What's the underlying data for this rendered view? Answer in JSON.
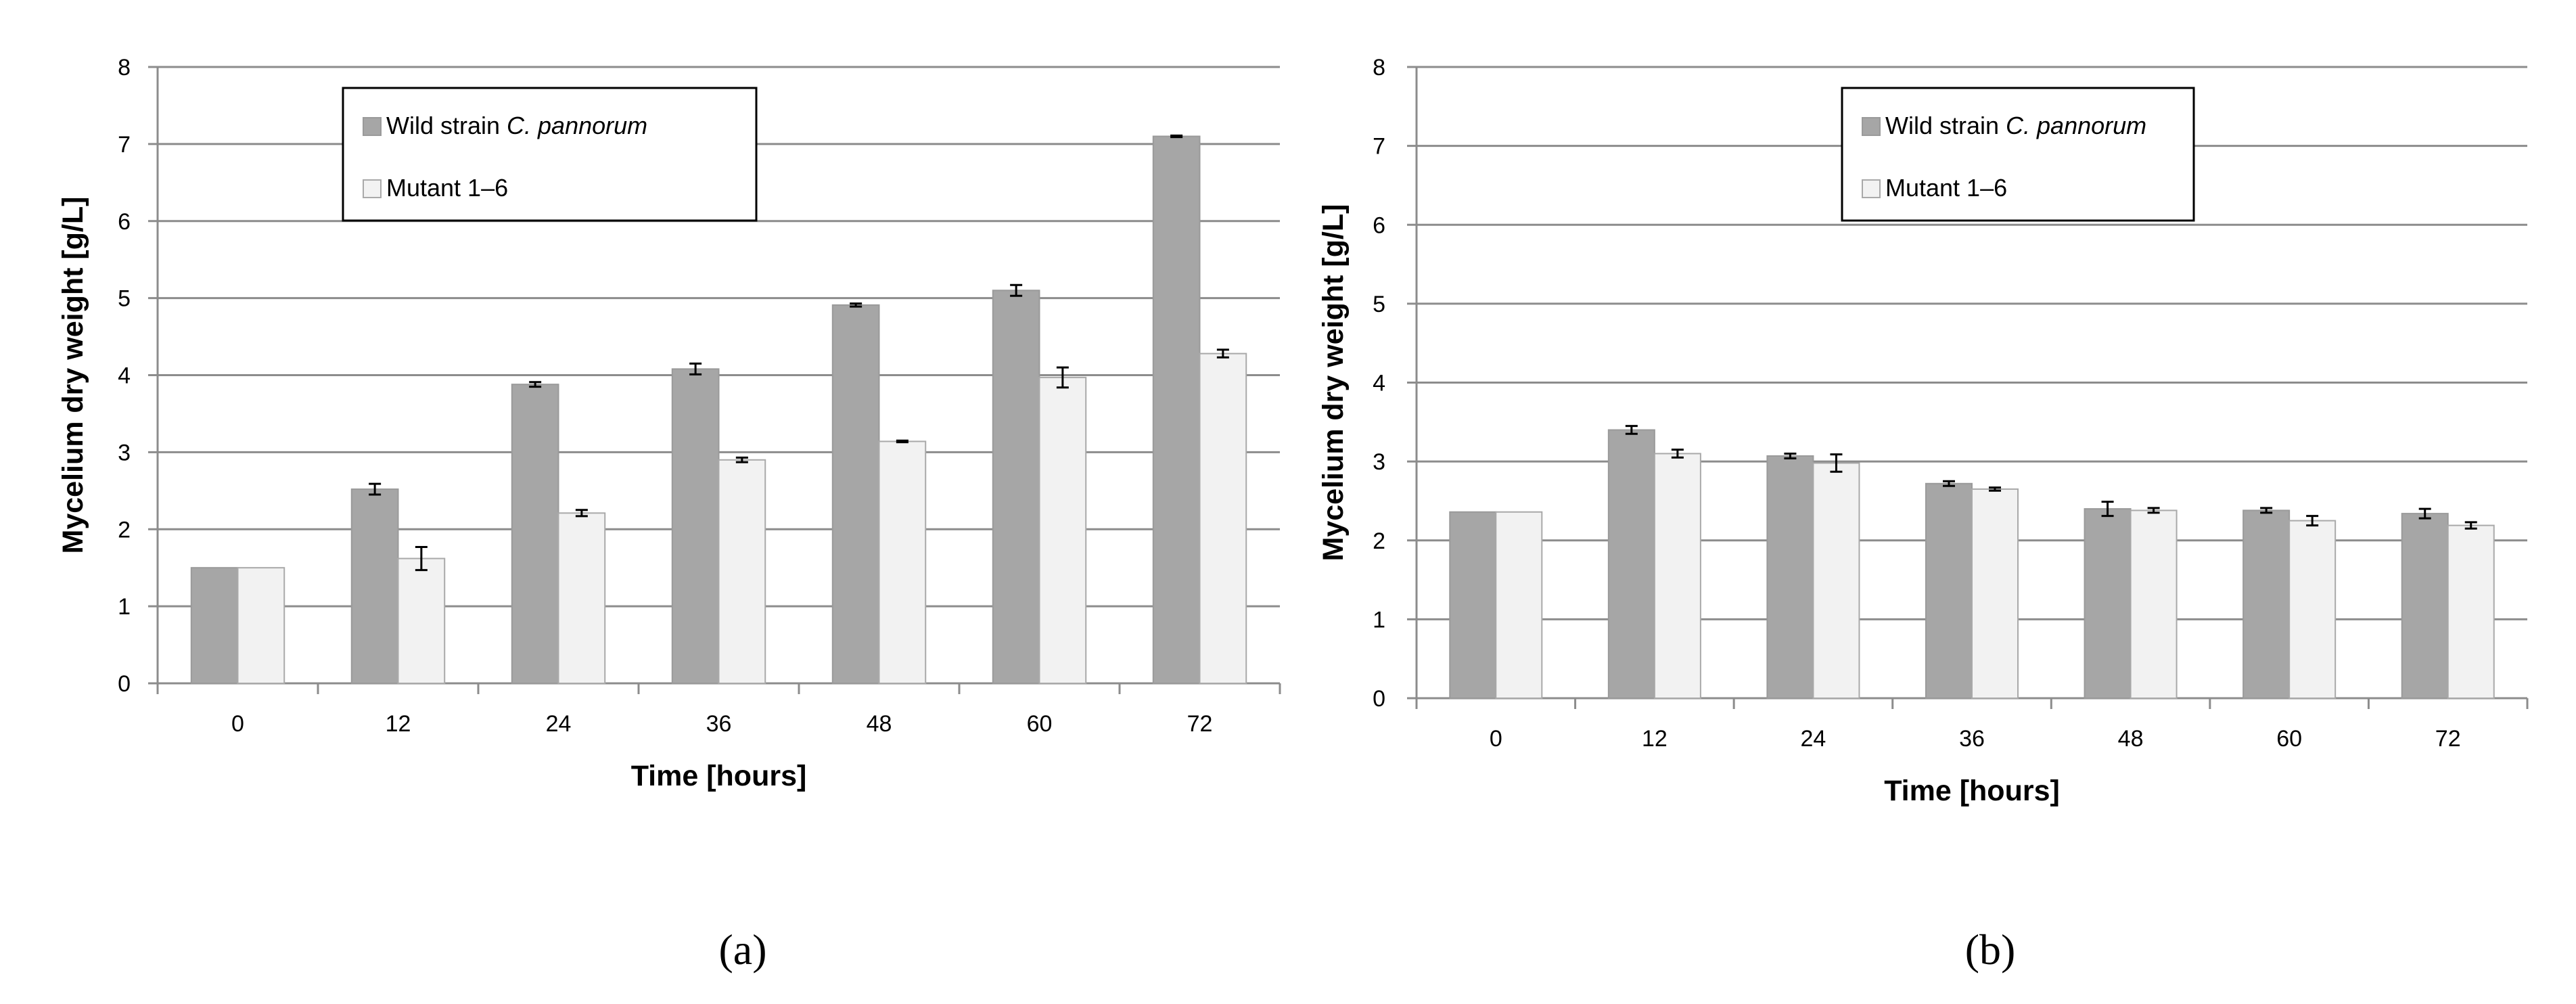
{
  "chart_data": [
    {
      "type": "bar",
      "panel_label": "(a)",
      "categories": [
        "0",
        "12",
        "24",
        "36",
        "48",
        "60",
        "72"
      ],
      "xlabel": "Time [hours]",
      "ylabel": "Mycelium dry weight [g/L]",
      "ylim": [
        0,
        8
      ],
      "yticks": [
        "0",
        "1",
        "2",
        "3",
        "4",
        "5",
        "6",
        "7",
        "8"
      ],
      "grid": true,
      "legend_position": "top-left",
      "series": [
        {
          "name_prefix": "Wild strain ",
          "name_italic": "C. pannorum",
          "color": "#a6a6a6",
          "values": [
            1.5,
            2.52,
            3.88,
            4.08,
            4.91,
            5.1,
            7.1
          ],
          "errors": [
            0,
            0.07,
            0.03,
            0.07,
            0.02,
            0.07,
            0.01
          ]
        },
        {
          "name_prefix": "Mutant  1–6",
          "name_italic": "",
          "color": "#f2f2f2",
          "values": [
            1.5,
            1.62,
            2.21,
            2.9,
            3.14,
            3.97,
            4.28
          ],
          "errors": [
            0,
            0.15,
            0.04,
            0.03,
            0.01,
            0.13,
            0.05
          ]
        }
      ]
    },
    {
      "type": "bar",
      "panel_label": "(b)",
      "categories": [
        "0",
        "12",
        "24",
        "36",
        "48",
        "60",
        "72"
      ],
      "xlabel": "Time [hours]",
      "ylabel": "Mycelium dry weight [g/L]",
      "ylim": [
        0,
        8
      ],
      "yticks": [
        "0",
        "1",
        "2",
        "3",
        "4",
        "5",
        "6",
        "7",
        "8"
      ],
      "grid": true,
      "legend_position": "top-center",
      "series": [
        {
          "name_prefix": "Wild strain ",
          "name_italic": "C. pannorum",
          "color": "#a6a6a6",
          "values": [
            2.36,
            3.4,
            3.07,
            2.72,
            2.4,
            2.38,
            2.34
          ],
          "errors": [
            0,
            0.05,
            0.03,
            0.03,
            0.09,
            0.03,
            0.06
          ]
        },
        {
          "name_prefix": "Mutant  1–6",
          "name_italic": "",
          "color": "#f2f2f2",
          "values": [
            2.36,
            3.1,
            2.98,
            2.65,
            2.38,
            2.25,
            2.19
          ],
          "errors": [
            0,
            0.05,
            0.11,
            0.02,
            0.03,
            0.06,
            0.04
          ]
        }
      ]
    }
  ]
}
